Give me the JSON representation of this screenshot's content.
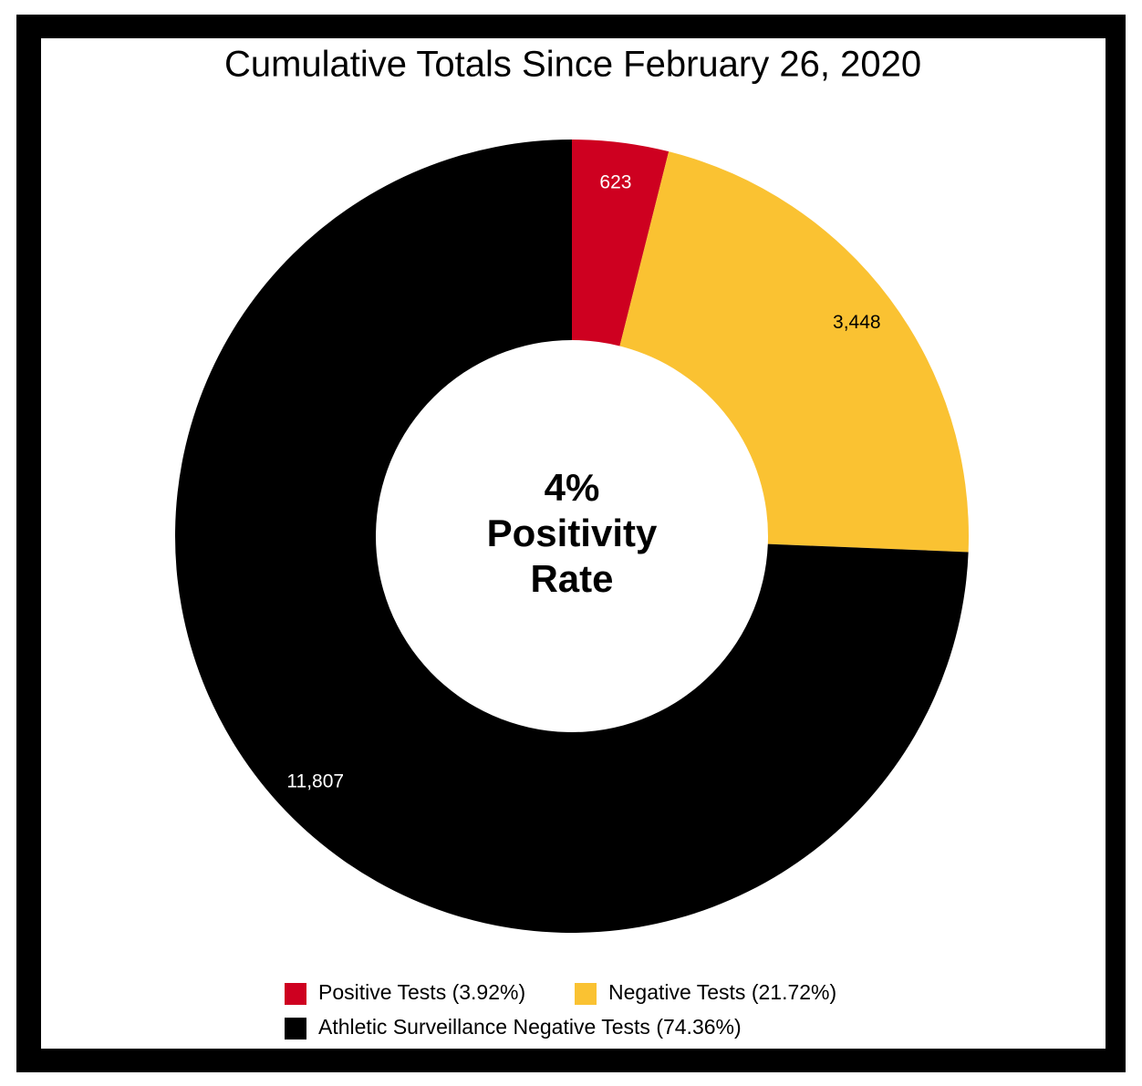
{
  "chart_data": {
    "type": "donut",
    "title": "Cumulative Totals Since February 26, 2020",
    "categories": [
      "Positive Tests (3.92%)",
      "Negative Tests (21.72%)",
      "Athletic Surveillance Negative Tests (74.36%)"
    ],
    "values": [
      623,
      3448,
      11807
    ],
    "value_labels": [
      "623",
      "3,448",
      "11,807"
    ],
    "colors": [
      "#ce0020",
      "#fac232",
      "#000000"
    ],
    "center_text": [
      "4%",
      "Positivity",
      "Rate"
    ]
  }
}
